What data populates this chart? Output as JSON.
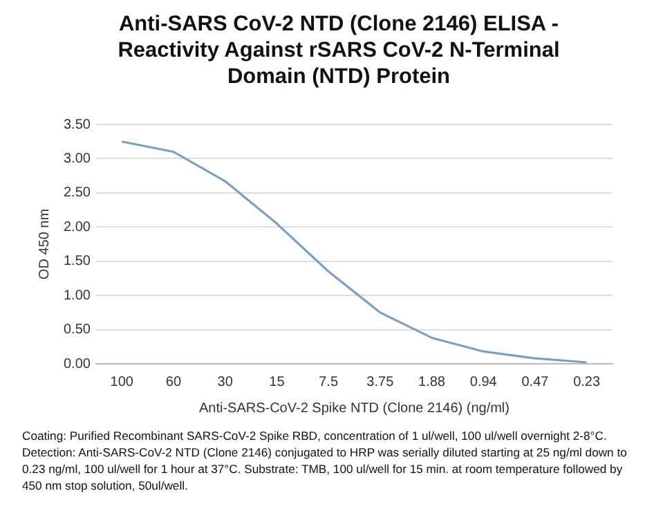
{
  "chart_data": {
    "type": "line",
    "title": "Anti-SARS CoV-2 NTD (Clone 2146) ELISA - Reactivity Against rSARS CoV-2 N-Terminal Domain (NTD) Protein",
    "xlabel": "Anti-SARS-CoV-2 Spike NTD (Clone 2146) (ng/ml)",
    "ylabel": "OD 450 nm",
    "categories": [
      "100",
      "60",
      "30",
      "15",
      "7.5",
      "3.75",
      "1.88",
      "0.94",
      "0.47",
      "0.23"
    ],
    "series": [
      {
        "color": "#7b9fc0",
        "values": [
          3.25,
          3.1,
          2.67,
          2.05,
          1.35,
          0.75,
          0.38,
          0.18,
          0.08,
          0.02
        ]
      }
    ],
    "ylim": [
      0,
      3.5
    ],
    "yticks": [
      {
        "value": 0,
        "label": "0.00"
      },
      {
        "value": 0.5,
        "label": "0.50"
      },
      {
        "value": 1,
        "label": "1.00"
      },
      {
        "value": 1.5,
        "label": "1.50"
      },
      {
        "value": 2,
        "label": "2.00"
      },
      {
        "value": 2.5,
        "label": "2.50"
      },
      {
        "value": 3,
        "label": "3.00"
      },
      {
        "value": 3.5,
        "label": "3.50"
      }
    ],
    "grid": "y",
    "legend": false,
    "marker": "none",
    "line_style": "solid",
    "annotations": [
      "Coating: Purified Recombinant SARS-CoV-2 Spike RBD, concentration of 1 ul/well, 100 ul/well overnight 2-8°C. Detection: Anti-SARS-CoV-2 NTD (Clone 2146) conjugated to HRP was serially diluted starting at 25 ng/ml down to 0.23 ng/ml, 100 ul/well for 1 hour at 37°C. Substrate: TMB, 100 ul/well for 15 min. at room temperature followed by 450 nm stop solution, 50ul/well."
    ]
  }
}
